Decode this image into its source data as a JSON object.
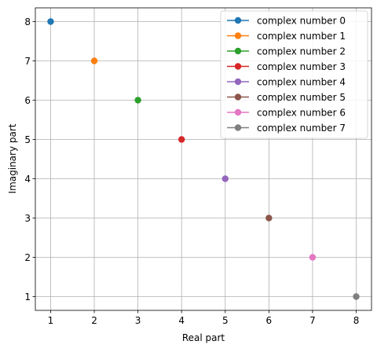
{
  "chart_data": {
    "type": "scatter",
    "title": "",
    "xlabel": "Real part",
    "ylabel": "Imaginary part",
    "xlim": [
      0.65,
      8.35
    ],
    "ylim": [
      0.65,
      8.35
    ],
    "xticks": [
      "1",
      "2",
      "3",
      "4",
      "5",
      "6",
      "7",
      "8"
    ],
    "yticks": [
      "1",
      "2",
      "3",
      "4",
      "5",
      "6",
      "7",
      "8"
    ],
    "grid": true,
    "legend_position": "top-right",
    "series": [
      {
        "name": "complex number 0",
        "color": "#1f77b4",
        "x": 1,
        "y": 8
      },
      {
        "name": "complex number 1",
        "color": "#ff7f0e",
        "x": 2,
        "y": 7
      },
      {
        "name": "complex number 2",
        "color": "#2ca02c",
        "x": 3,
        "y": 6
      },
      {
        "name": "complex number 3",
        "color": "#d62728",
        "x": 4,
        "y": 5
      },
      {
        "name": "complex number 4",
        "color": "#9467bd",
        "x": 5,
        "y": 4
      },
      {
        "name": "complex number 5",
        "color": "#8c564b",
        "x": 6,
        "y": 3
      },
      {
        "name": "complex number 6",
        "color": "#e377c2",
        "x": 7,
        "y": 2
      },
      {
        "name": "complex number 7",
        "color": "#7f7f7f",
        "x": 8,
        "y": 1
      }
    ]
  }
}
